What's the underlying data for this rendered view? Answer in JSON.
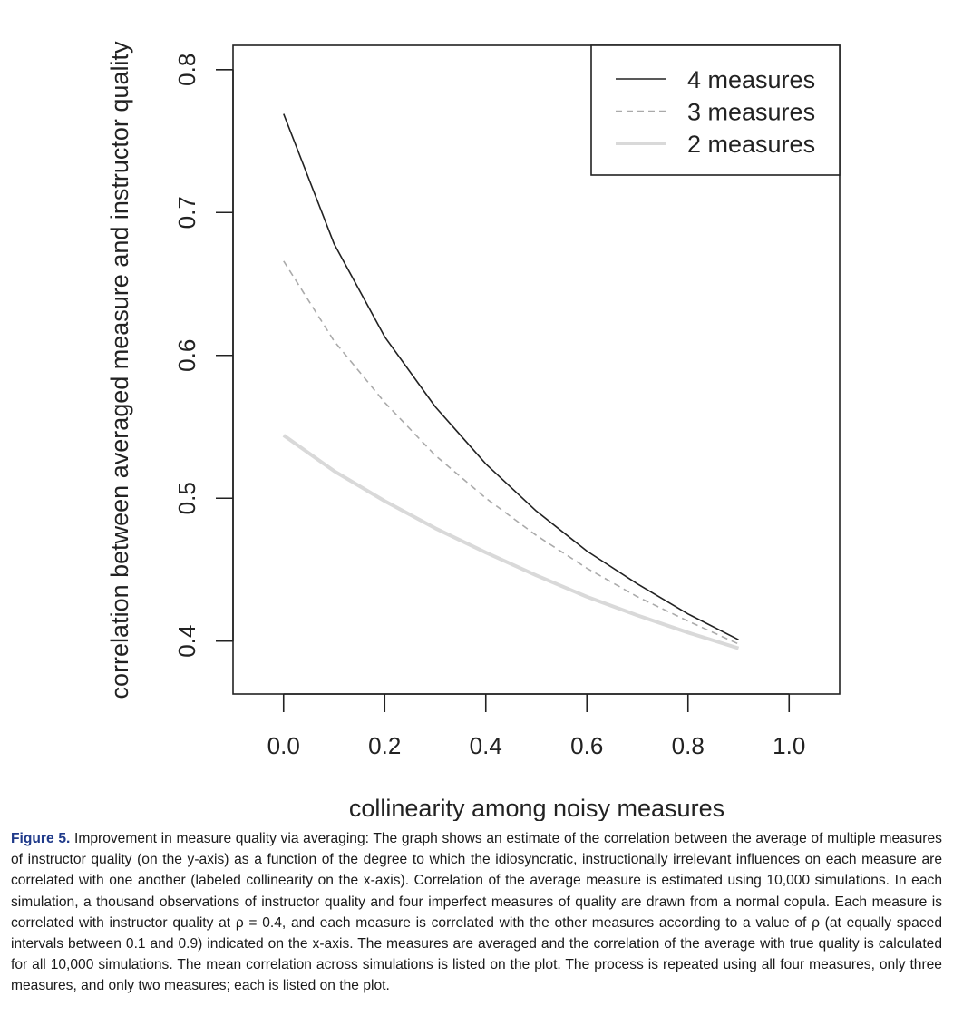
{
  "chart_data": {
    "type": "line",
    "title": "",
    "xlabel": "collinearity among noisy measures",
    "ylabel": "correlation between averaged measure and instructor quality",
    "xlim": [
      -0.1,
      1.1
    ],
    "ylim": [
      0.363,
      0.817
    ],
    "xticks": [
      0.0,
      0.2,
      0.4,
      0.6,
      0.8,
      1.0
    ],
    "xtick_labels": [
      "0.0",
      "0.2",
      "0.4",
      "0.6",
      "0.8",
      "1.0"
    ],
    "yticks": [
      0.4,
      0.5,
      0.6,
      0.7,
      0.8
    ],
    "ytick_labels": [
      "0.4",
      "0.5",
      "0.6",
      "0.7",
      "0.8"
    ],
    "grid": false,
    "legend_position": "top-right",
    "x": [
      0.0,
      0.1,
      0.2,
      0.3,
      0.4,
      0.5,
      0.6,
      0.7,
      0.8,
      0.9
    ],
    "series": [
      {
        "name": "4 measures",
        "style": "solid",
        "color": "#222222",
        "values": [
          0.769,
          0.678,
          0.613,
          0.564,
          0.524,
          0.491,
          0.463,
          0.44,
          0.419,
          0.401
        ]
      },
      {
        "name": "3 measures",
        "style": "dashed",
        "color": "#aaaaaa",
        "values": [
          0.666,
          0.61,
          0.567,
          0.53,
          0.5,
          0.474,
          0.451,
          0.431,
          0.414,
          0.398
        ]
      },
      {
        "name": "2 measures",
        "style": "thick",
        "color": "#d9d9d9",
        "values": [
          0.544,
          0.519,
          0.498,
          0.479,
          0.462,
          0.446,
          0.431,
          0.418,
          0.406,
          0.395
        ]
      }
    ]
  },
  "caption": {
    "label": "Figure 5.",
    "text": "Improvement in measure quality via averaging: The graph shows an estimate of the correlation between the average of multiple measures of instructor quality (on the y-axis) as a function of the degree to which the idiosyncratic, instructionally irrelevant influences on each measure are correlated with one another (labeled collinearity on the x-axis). Correlation of the average measure is estimated using 10,000 simulations. In each simulation, a thousand observations of instructor quality and four imperfect measures of quality are drawn from a normal copula. Each measure is correlated with instructor quality at ρ = 0.4, and each measure is correlated with the other measures according to a value of ρ (at equally spaced intervals between 0.1 and 0.9) indicated on the x-axis. The measures are averaged and the correlation of the average with true quality is calculated for all 10,000 simulations. The mean correlation across simulations is listed on the plot. The process is repeated using all four measures, only three measures, and only two measures; each is listed on the plot."
  }
}
